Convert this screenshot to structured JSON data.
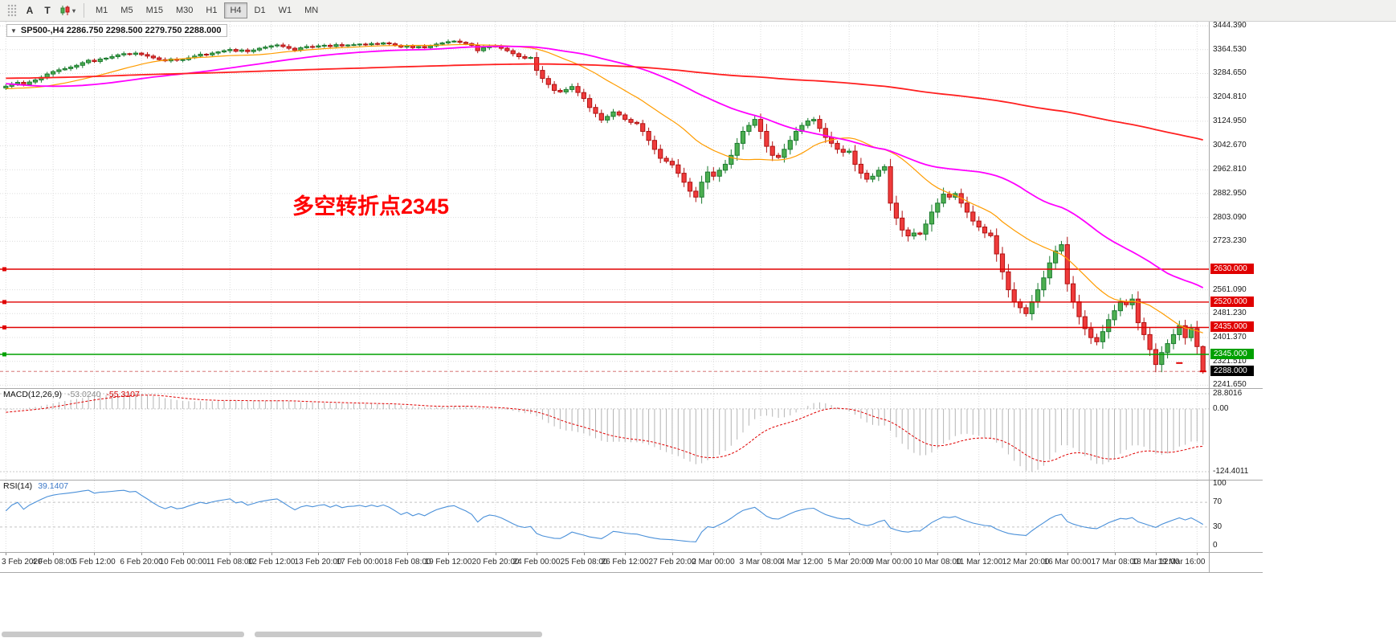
{
  "icons": {
    "collapse": "▼",
    "caret": "▾"
  },
  "toolbar": {
    "a_button": "A",
    "t_button": "T",
    "timeframes": [
      "M1",
      "M5",
      "M15",
      "M30",
      "H1",
      "H4",
      "D1",
      "W1",
      "MN"
    ],
    "active_timeframe": "H4"
  },
  "chart": {
    "title": "SP500-,H4  2286.750 2298.500 2279.750 2288.000",
    "annotation": "多空转折点2345"
  },
  "price_axis": {
    "view_max": 3458,
    "view_min": 2232,
    "ticks": [
      3444.39,
      3364.53,
      3284.65,
      3204.81,
      3124.95,
      3042.67,
      2962.81,
      2882.95,
      2803.09,
      2723.23,
      2561.09,
      2481.23,
      2401.37,
      2321.51,
      2241.65
    ]
  },
  "macd": {
    "title": "MACD(12,26,9)",
    "macd_value": "-53.0240",
    "signal_value": "-55.3107",
    "axis_max": "28.8016",
    "axis_zero": "0.00",
    "axis_min": "-124.4011",
    "histogram_color": "#b4b4b4",
    "signal_color": "#e00000"
  },
  "rsi": {
    "title": "RSI(14)",
    "value": "39.1407",
    "axis_labels": [
      "100",
      "70",
      "30",
      "0"
    ],
    "levels": [
      70,
      30
    ],
    "line_color": "#4a90d9"
  },
  "time_axis": {
    "labels": [
      [
        0,
        "3 Feb 2020"
      ],
      [
        8,
        "4 Feb 08:00"
      ],
      [
        15,
        "5 Feb 12:00"
      ],
      [
        23,
        "6 Feb 20:00"
      ],
      [
        30,
        "10 Feb 00:00"
      ],
      [
        38,
        "11 Feb 08:00"
      ],
      [
        45,
        "12 Feb 12:00"
      ],
      [
        53,
        "13 Feb 20:00"
      ],
      [
        60,
        "17 Feb 00:00"
      ],
      [
        68,
        "18 Feb 08:00"
      ],
      [
        75,
        "19 Feb 12:00"
      ],
      [
        83,
        "20 Feb 20:00"
      ],
      [
        90,
        "24 Feb 00:00"
      ],
      [
        98,
        "25 Feb 08:00"
      ],
      [
        105,
        "26 Feb 12:00"
      ],
      [
        113,
        "27 Feb 20:00"
      ],
      [
        120,
        "2 Mar 00:00"
      ],
      [
        128,
        "3 Mar 08:00"
      ],
      [
        135,
        "4 Mar 12:00"
      ],
      [
        143,
        "5 Mar 20:00"
      ],
      [
        150,
        "9 Mar 00:00"
      ],
      [
        158,
        "10 Mar 08:00"
      ],
      [
        165,
        "11 Mar 12:00"
      ],
      [
        173,
        "12 Mar 20:00"
      ],
      [
        180,
        "16 Mar 00:00"
      ],
      [
        188,
        "17 Mar 08:00"
      ],
      [
        195,
        "18 Mar 12:00"
      ],
      [
        202,
        "19 Mar 16:00"
      ]
    ]
  },
  "colors": {
    "up_fill": "#4caf50",
    "up_stroke": "#1b7a2f",
    "down_fill": "#ef3b3b",
    "down_stroke": "#b01212",
    "grid": "#dcdcdc"
  },
  "chart_data": {
    "type": "candlestick",
    "symbol": "SP500-",
    "timeframe": "H4",
    "current_ohlc": {
      "open": 2286.75,
      "high": 2298.5,
      "low": 2279.75,
      "close": 2288.0
    },
    "price_range_visible": [
      2232,
      3458
    ],
    "first_open": 3236,
    "closes": [
      3242,
      3250,
      3255,
      3248,
      3256,
      3263,
      3272,
      3283,
      3291,
      3297,
      3301,
      3306,
      3312,
      3321,
      3329,
      3325,
      3333,
      3336,
      3341,
      3347,
      3351,
      3349,
      3353,
      3348,
      3343,
      3337,
      3331,
      3327,
      3333,
      3329,
      3331,
      3337,
      3343,
      3349,
      3347,
      3353,
      3357,
      3361,
      3365,
      3359,
      3363,
      3358,
      3363,
      3369,
      3373,
      3377,
      3380,
      3375,
      3369,
      3363,
      3371,
      3375,
      3373,
      3377,
      3379,
      3375,
      3381,
      3377,
      3380,
      3381,
      3383,
      3381,
      3385,
      3383,
      3387,
      3384,
      3379,
      3373,
      3377,
      3371,
      3375,
      3371,
      3377,
      3383,
      3387,
      3391,
      3393,
      3389,
      3385,
      3379,
      3361,
      3371,
      3376,
      3374,
      3369,
      3361,
      3351,
      3341,
      3336,
      3338,
      3295,
      3268,
      3248,
      3228,
      3223,
      3231,
      3241,
      3221,
      3201,
      3171,
      3151,
      3129,
      3141,
      3156,
      3146,
      3131,
      3121,
      3117,
      3091,
      3061,
      3031,
      3001,
      2991,
      2979,
      2951,
      2921,
      2891,
      2871,
      2921,
      2955,
      2941,
      2961,
      2981,
      3011,
      3051,
      3091,
      3111,
      3131,
      3091,
      3041,
      3011,
      3004,
      3031,
      3061,
      3091,
      3111,
      3126,
      3131,
      3101,
      3071,
      3051,
      3031,
      3021,
      3025,
      2981,
      2951,
      2931,
      2941,
      2961,
      2973,
      2851,
      2801,
      2761,
      2741,
      2751,
      2747,
      2781,
      2821,
      2851,
      2881,
      2871,
      2883,
      2851,
      2821,
      2791,
      2771,
      2751,
      2742,
      2681,
      2621,
      2561,
      2521,
      2501,
      2481,
      2521,
      2561,
      2601,
      2651,
      2691,
      2712,
      2581,
      2521,
      2471,
      2431,
      2401,
      2387,
      2421,
      2461,
      2491,
      2521,
      2511,
      2530,
      2451,
      2411,
      2361,
      2311,
      2351,
      2381,
      2411,
      2441,
      2401,
      2431,
      2371,
      2288
    ],
    "pre_count": 200,
    "pre_anchors": [
      [
        0,
        3190
      ],
      [
        60,
        3260
      ],
      [
        120,
        3330
      ],
      [
        155,
        3320
      ],
      [
        175,
        3215
      ],
      [
        199,
        3245
      ]
    ],
    "overlays": [
      {
        "name": "MA-fast",
        "period": 20,
        "color": "#ff9c00",
        "width": 1.2
      },
      {
        "name": "MA-mid",
        "period": 48,
        "color": "#ff00ff",
        "width": 1.8
      },
      {
        "name": "MA-slow",
        "period": 200,
        "color": "#ff2020",
        "width": 1.8
      }
    ],
    "levels": [
      {
        "price": 2630.0,
        "label": "2630.000",
        "color": "#e00000",
        "kind": "resistance"
      },
      {
        "price": 2520.0,
        "label": "2520.000",
        "color": "#e00000",
        "kind": "resistance"
      },
      {
        "price": 2435.0,
        "label": "2435.000",
        "color": "#e00000",
        "kind": "resistance"
      },
      {
        "price": 2345.0,
        "label": "2345.000",
        "color": "#00a000",
        "kind": "support"
      }
    ],
    "current_price": {
      "price": 2288.0,
      "label": "2288.000"
    },
    "markers": [
      {
        "bar": 199,
        "price": 2316,
        "color": "#e00000"
      },
      {
        "bar": 203,
        "price": 2288,
        "color": "#e00000"
      }
    ],
    "annotation": {
      "text": "多空转折点2345",
      "color": "#ff0000"
    },
    "indicators": [
      {
        "name": "MACD",
        "params": [
          12,
          26,
          9
        ],
        "values": [
          -53.024,
          -55.3107
        ]
      },
      {
        "name": "RSI",
        "params": [
          14
        ],
        "value": 39.1407
      }
    ]
  }
}
